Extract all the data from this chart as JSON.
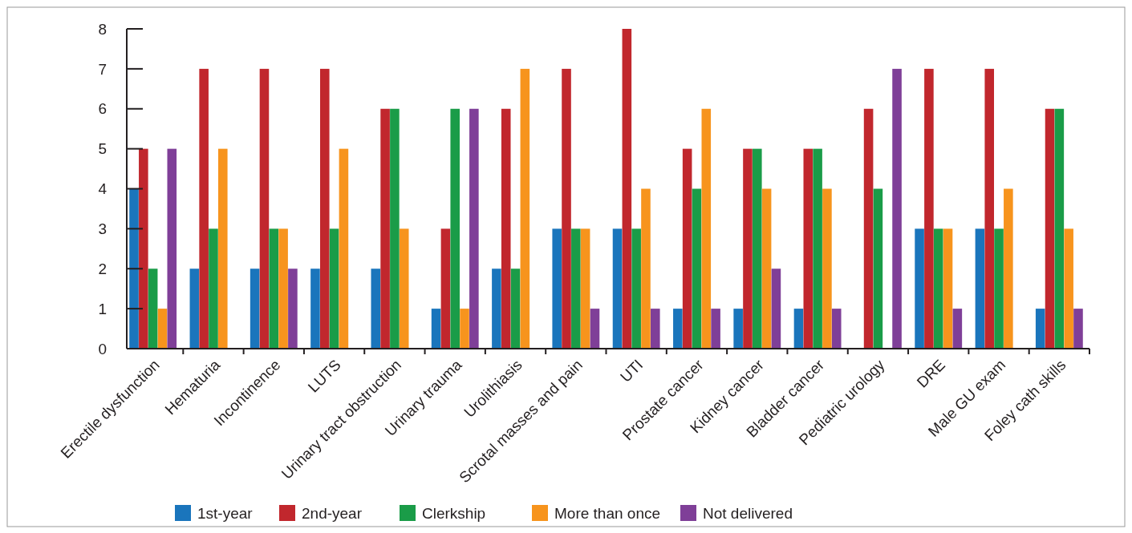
{
  "chart_data": {
    "type": "bar",
    "categories": [
      "Erectile dysfunction",
      "Hematuria",
      "Incontinence",
      "LUTS",
      "Urinary tract obstruction",
      "Urinary trauma",
      "Urolithiasis",
      "Scrotal masses and pain",
      "UTI",
      "Prostate cancer",
      "Kidney cancer",
      "Bladder cancer",
      "Pediatric urology",
      "DRE",
      "Male GU exam",
      "Foley cath skills"
    ],
    "series": [
      {
        "name": "1st-year",
        "color": "#1a75bc",
        "values": [
          4,
          2,
          2,
          2,
          2,
          1,
          2,
          3,
          3,
          1,
          1,
          1,
          0,
          3,
          3,
          1
        ]
      },
      {
        "name": "2nd-year",
        "color": "#c1272d",
        "values": [
          5,
          7,
          7,
          7,
          6,
          3,
          6,
          7,
          8,
          5,
          5,
          5,
          6,
          7,
          7,
          6
        ]
      },
      {
        "name": "Clerkship",
        "color": "#1a9c48",
        "values": [
          2,
          3,
          3,
          3,
          6,
          6,
          2,
          3,
          3,
          4,
          5,
          5,
          4,
          3,
          3,
          6
        ]
      },
      {
        "name": "More than once",
        "color": "#f7941d",
        "values": [
          1,
          5,
          3,
          5,
          3,
          1,
          7,
          3,
          4,
          6,
          4,
          4,
          0,
          3,
          4,
          3
        ]
      },
      {
        "name": "Not delivered",
        "color": "#7f3f98",
        "values": [
          5,
          0,
          2,
          0,
          0,
          6,
          0,
          1,
          1,
          1,
          2,
          1,
          7,
          1,
          0,
          1
        ]
      }
    ],
    "ylim": [
      0,
      8
    ],
    "yticks": [
      0,
      1,
      2,
      3,
      4,
      5,
      6,
      7,
      8
    ],
    "grid": false,
    "legend": "bottom"
  }
}
